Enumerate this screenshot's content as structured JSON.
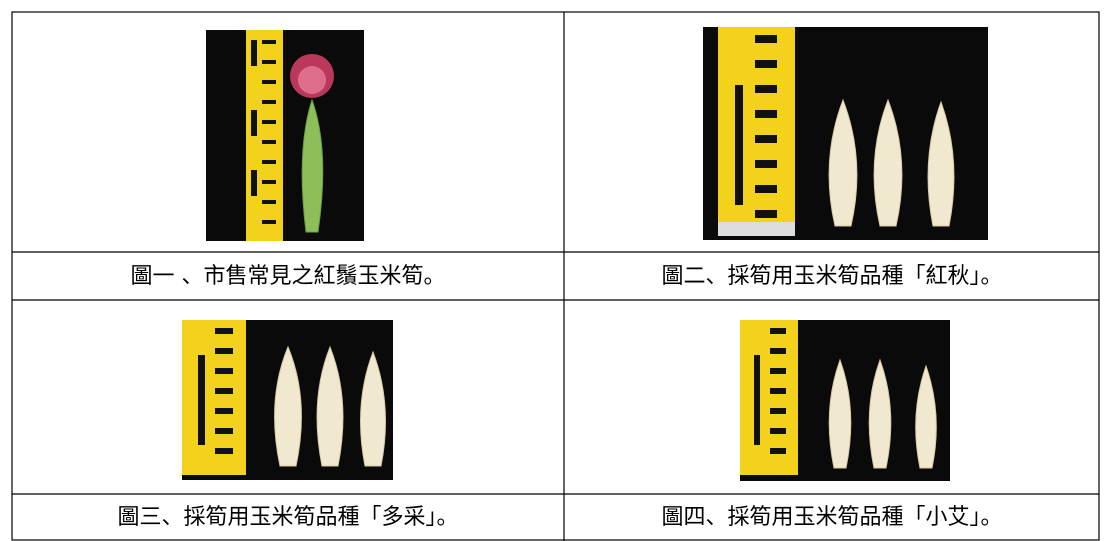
{
  "table": {
    "rows": [
      [
        "圖一 、市售常見之紅鬚玉米筍。",
        "圖二、採筍用玉米筍品種「紅秋」。"
      ],
      [
        "圖三、採筍用玉米筍品種「多采」。",
        "圖四、採筍用玉米筍品種「小艾」。"
      ]
    ]
  }
}
